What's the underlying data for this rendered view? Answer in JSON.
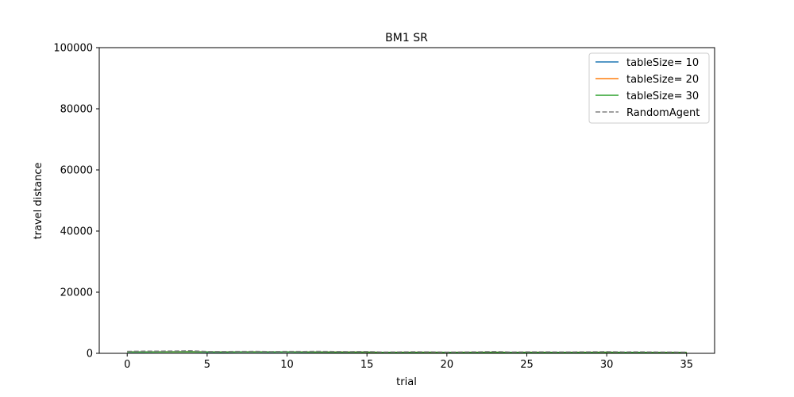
{
  "chart_data": {
    "type": "line",
    "title": "BM1  SR",
    "xlabel": "trial",
    "ylabel": "travel distance",
    "xlim": [
      -1.75,
      36.75
    ],
    "ylim": [
      0,
      100000
    ],
    "xticks": [
      0,
      5,
      10,
      15,
      20,
      25,
      30,
      35
    ],
    "yticks": [
      0,
      20000,
      40000,
      60000,
      80000,
      100000
    ],
    "grid": false,
    "legend_position": "top-right",
    "x": [
      0,
      1,
      2,
      3,
      4,
      5,
      6,
      7,
      8,
      9,
      10,
      11,
      12,
      13,
      14,
      15,
      16,
      17,
      18,
      19,
      20,
      21,
      22,
      23,
      24,
      25,
      26,
      27,
      28,
      29,
      30,
      31,
      32,
      33,
      34,
      35
    ],
    "series": [
      {
        "name": "tableSize= 10",
        "color": "#1f77b4",
        "dash": "solid",
        "values": [
          420,
          430,
          440,
          450,
          460,
          400,
          390,
          410,
          420,
          400,
          410,
          390,
          380,
          370,
          360,
          350,
          300,
          310,
          320,
          330,
          300,
          310,
          320,
          330,
          300,
          310,
          320,
          300,
          310,
          320,
          330,
          300,
          290,
          280,
          270,
          260
        ]
      },
      {
        "name": "tableSize= 20",
        "color": "#ff7f0e",
        "dash": "solid",
        "values": [
          480,
          470,
          490,
          500,
          520,
          460,
          450,
          470,
          480,
          460,
          470,
          450,
          430,
          420,
          410,
          400,
          340,
          350,
          360,
          370,
          340,
          350,
          360,
          370,
          340,
          350,
          360,
          340,
          350,
          360,
          370,
          340,
          330,
          320,
          310,
          300
        ]
      },
      {
        "name": "tableSize= 30",
        "color": "#2ca02c",
        "dash": "solid",
        "values": [
          460,
          450,
          470,
          480,
          500,
          440,
          430,
          450,
          460,
          440,
          450,
          430,
          410,
          400,
          390,
          380,
          320,
          330,
          340,
          350,
          320,
          330,
          340,
          350,
          320,
          330,
          340,
          320,
          330,
          340,
          350,
          320,
          310,
          300,
          290,
          280
        ]
      },
      {
        "name": "RandomAgent",
        "color": "#808080",
        "dash": "dashed",
        "values": [
          650,
          700,
          720,
          760,
          850,
          600,
          580,
          620,
          640,
          560,
          620,
          600,
          650,
          580,
          560,
          600,
          420,
          470,
          520,
          480,
          400,
          450,
          500,
          600,
          420,
          480,
          500,
          450,
          470,
          500,
          550,
          460,
          500,
          440,
          420,
          380
        ]
      }
    ]
  }
}
